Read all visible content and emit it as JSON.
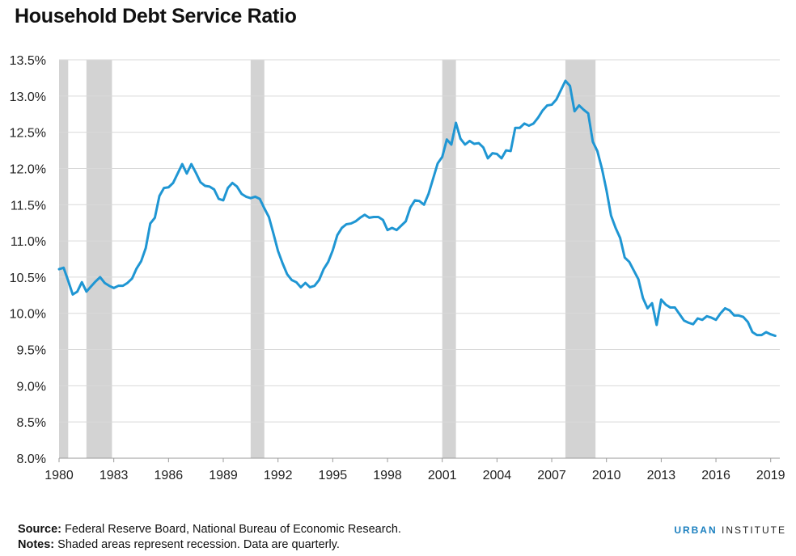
{
  "title": "Household Debt Service Ratio",
  "chart_data": {
    "type": "line",
    "title": "Household Debt Service Ratio",
    "xlabel": "",
    "ylabel": "",
    "xlim": [
      1980,
      2019.5
    ],
    "ylim": [
      8.0,
      13.5
    ],
    "yticks": [
      "8.0%",
      "8.5%",
      "9.0%",
      "9.5%",
      "10.0%",
      "10.5%",
      "11.0%",
      "11.5%",
      "12.0%",
      "12.5%",
      "13.0%",
      "13.5%"
    ],
    "xticks": [
      "1980",
      "1983",
      "1986",
      "1989",
      "1992",
      "1995",
      "1998",
      "2001",
      "2004",
      "2007",
      "2010",
      "2013",
      "2016",
      "2019"
    ],
    "grid": "horizontal",
    "line_color": "#1f96d3",
    "recession_color": "#d3d3d3",
    "recessions": [
      [
        1980.0,
        1980.5
      ],
      [
        1981.5,
        1982.9
      ],
      [
        1990.5,
        1991.25
      ],
      [
        2001.0,
        2001.75
      ],
      [
        2007.75,
        2009.4
      ]
    ],
    "series": [
      {
        "x": [
          1980.0,
          1980.25,
          1980.5,
          1980.75,
          1981.0,
          1981.25,
          1981.5,
          1981.75,
          1982.0,
          1982.25,
          1982.5,
          1982.75,
          1983.0,
          1983.25,
          1983.5,
          1983.75,
          1984.0,
          1984.25,
          1984.5,
          1984.75,
          1985.0,
          1985.25,
          1985.5,
          1985.75,
          1986.0,
          1986.25,
          1986.5,
          1986.75,
          1987.0,
          1987.25,
          1987.5,
          1987.75,
          1988.0,
          1988.25,
          1988.5,
          1988.75,
          1989.0,
          1989.25,
          1989.5,
          1989.75,
          1990.0,
          1990.25,
          1990.5,
          1990.75,
          1991.0,
          1991.25,
          1991.5,
          1991.75,
          1992.0,
          1992.25,
          1992.5,
          1992.75,
          1993.0,
          1993.25,
          1993.5,
          1993.75,
          1994.0,
          1994.25,
          1994.5,
          1994.75,
          1995.0,
          1995.25,
          1995.5,
          1995.75,
          1996.0,
          1996.25,
          1996.5,
          1996.75,
          1997.0,
          1997.25,
          1997.5,
          1997.75,
          1998.0,
          1998.25,
          1998.5,
          1998.75,
          1999.0,
          1999.25,
          1999.5,
          1999.75,
          2000.0,
          2000.25,
          2000.5,
          2000.75,
          2001.0,
          2001.25,
          2001.5,
          2001.75,
          2002.0,
          2002.25,
          2002.5,
          2002.75,
          2003.0,
          2003.25,
          2003.5,
          2003.75,
          2004.0,
          2004.25,
          2004.5,
          2004.75,
          2005.0,
          2005.25,
          2005.5,
          2005.75,
          2006.0,
          2006.25,
          2006.5,
          2006.75,
          2007.0,
          2007.25,
          2007.5,
          2007.75,
          2008.0,
          2008.25,
          2008.5,
          2008.75,
          2009.0,
          2009.25,
          2009.5,
          2009.75,
          2010.0,
          2010.25,
          2010.5,
          2010.75,
          2011.0,
          2011.25,
          2011.5,
          2011.75,
          2012.0,
          2012.25,
          2012.5,
          2012.75,
          2013.0,
          2013.25,
          2013.5,
          2013.75,
          2014.0,
          2014.25,
          2014.5,
          2014.75,
          2015.0,
          2015.25,
          2015.5,
          2015.75,
          2016.0,
          2016.25,
          2016.5,
          2016.75,
          2017.0,
          2017.25,
          2017.5,
          2017.75,
          2018.0,
          2018.25,
          2018.5,
          2018.75,
          2019.0,
          2019.25
        ],
        "values": [
          10.61,
          10.63,
          10.45,
          10.26,
          10.3,
          10.43,
          10.3,
          10.37,
          10.44,
          10.5,
          10.42,
          10.38,
          10.35,
          10.38,
          10.38,
          10.42,
          10.48,
          10.62,
          10.72,
          10.9,
          11.24,
          11.32,
          11.62,
          11.73,
          11.74,
          11.8,
          11.93,
          12.06,
          11.93,
          12.06,
          11.94,
          11.81,
          11.76,
          11.75,
          11.71,
          11.58,
          11.56,
          11.73,
          11.8,
          11.75,
          11.65,
          11.61,
          11.59,
          11.61,
          11.58,
          11.45,
          11.33,
          11.1,
          10.86,
          10.69,
          10.54,
          10.46,
          10.43,
          10.36,
          10.42,
          10.36,
          10.38,
          10.46,
          10.61,
          10.71,
          10.87,
          11.08,
          11.18,
          11.23,
          11.24,
          11.27,
          11.32,
          11.36,
          11.32,
          11.33,
          11.33,
          11.29,
          11.15,
          11.18,
          11.15,
          11.21,
          11.27,
          11.46,
          11.56,
          11.55,
          11.5,
          11.65,
          11.86,
          12.07,
          12.16,
          12.4,
          12.33,
          12.63,
          12.41,
          12.33,
          12.38,
          12.34,
          12.35,
          12.29,
          12.14,
          12.21,
          12.2,
          12.14,
          12.25,
          12.24,
          12.56,
          12.56,
          12.62,
          12.59,
          12.62,
          12.7,
          12.8,
          12.87,
          12.88,
          12.95,
          13.08,
          13.21,
          13.14,
          12.79,
          12.87,
          12.81,
          12.76,
          12.37,
          12.24,
          12.0,
          11.7,
          11.35,
          11.18,
          11.04,
          10.77,
          10.71,
          10.59,
          10.47,
          10.21,
          10.07,
          10.14,
          9.84,
          10.19,
          10.12,
          10.08,
          10.08,
          9.99,
          9.9,
          9.87,
          9.85,
          9.93,
          9.91,
          9.96,
          9.94,
          9.91,
          10.0,
          10.07,
          10.04,
          9.97,
          9.97,
          9.95,
          9.88,
          9.74,
          9.7,
          9.7,
          9.74,
          9.71,
          9.69
        ]
      }
    ]
  },
  "footer": {
    "source_label": "Source:",
    "source_text": "Federal Reserve Board, National Bureau of Economic Research.",
    "notes_label": "Notes:",
    "notes_text": "Shaded areas represent recession. Data are quarterly."
  },
  "brand": {
    "name_bold": "URBAN",
    "name_light": "INSTITUTE"
  }
}
